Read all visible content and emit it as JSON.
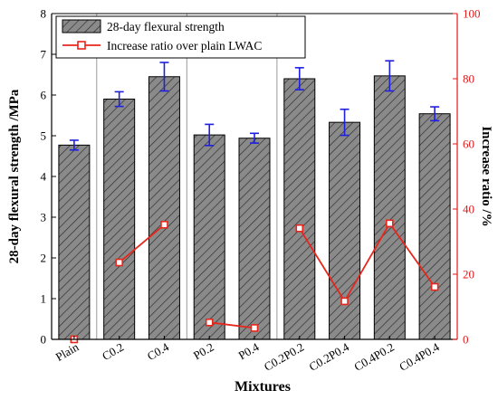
{
  "chart_data": {
    "type": "bar",
    "xlabel": "Mixtures",
    "ylabel": "28-day flexural strength /MPa",
    "y2label": "Increase ratio /%",
    "ylim": [
      0,
      8
    ],
    "y2lim": [
      0,
      100
    ],
    "yticks": [
      "0",
      "1",
      "2",
      "3",
      "4",
      "5",
      "6",
      "7",
      "8"
    ],
    "y2ticks": [
      "0",
      "20",
      "40",
      "60",
      "80",
      "100"
    ],
    "categories": [
      "Plain",
      "C0.2",
      "C0.4",
      "P0.2",
      "P0.4",
      "C0.2P0.2",
      "C0.2P0.4",
      "C0.4P0.2",
      "C0.4P0.4"
    ],
    "series": [
      {
        "name": "28-day flexural strength",
        "kind": "bar",
        "values": [
          4.77,
          5.9,
          6.45,
          5.02,
          4.94,
          6.4,
          5.33,
          6.47,
          5.54
        ],
        "errors": [
          0.12,
          0.18,
          0.35,
          0.26,
          0.12,
          0.27,
          0.32,
          0.37,
          0.17
        ]
      },
      {
        "name": "Increase ratio over plain LWAC",
        "kind": "line",
        "axis": "right",
        "values": [
          0,
          23.6,
          35.2,
          5.2,
          3.5,
          34.1,
          11.7,
          35.6,
          16.1
        ],
        "segments": [
          [
            0
          ],
          [
            1,
            2
          ],
          [
            3,
            4
          ],
          [
            5,
            6,
            7,
            8
          ]
        ]
      }
    ],
    "group_dividers_after": [
      0,
      2,
      4
    ],
    "legend_position": "top-left",
    "colors": {
      "bar_fill": "#8a8a8a",
      "error_bar": "#1f1fe0",
      "line": "#e8261c",
      "right_axis": "#e0191c"
    }
  }
}
